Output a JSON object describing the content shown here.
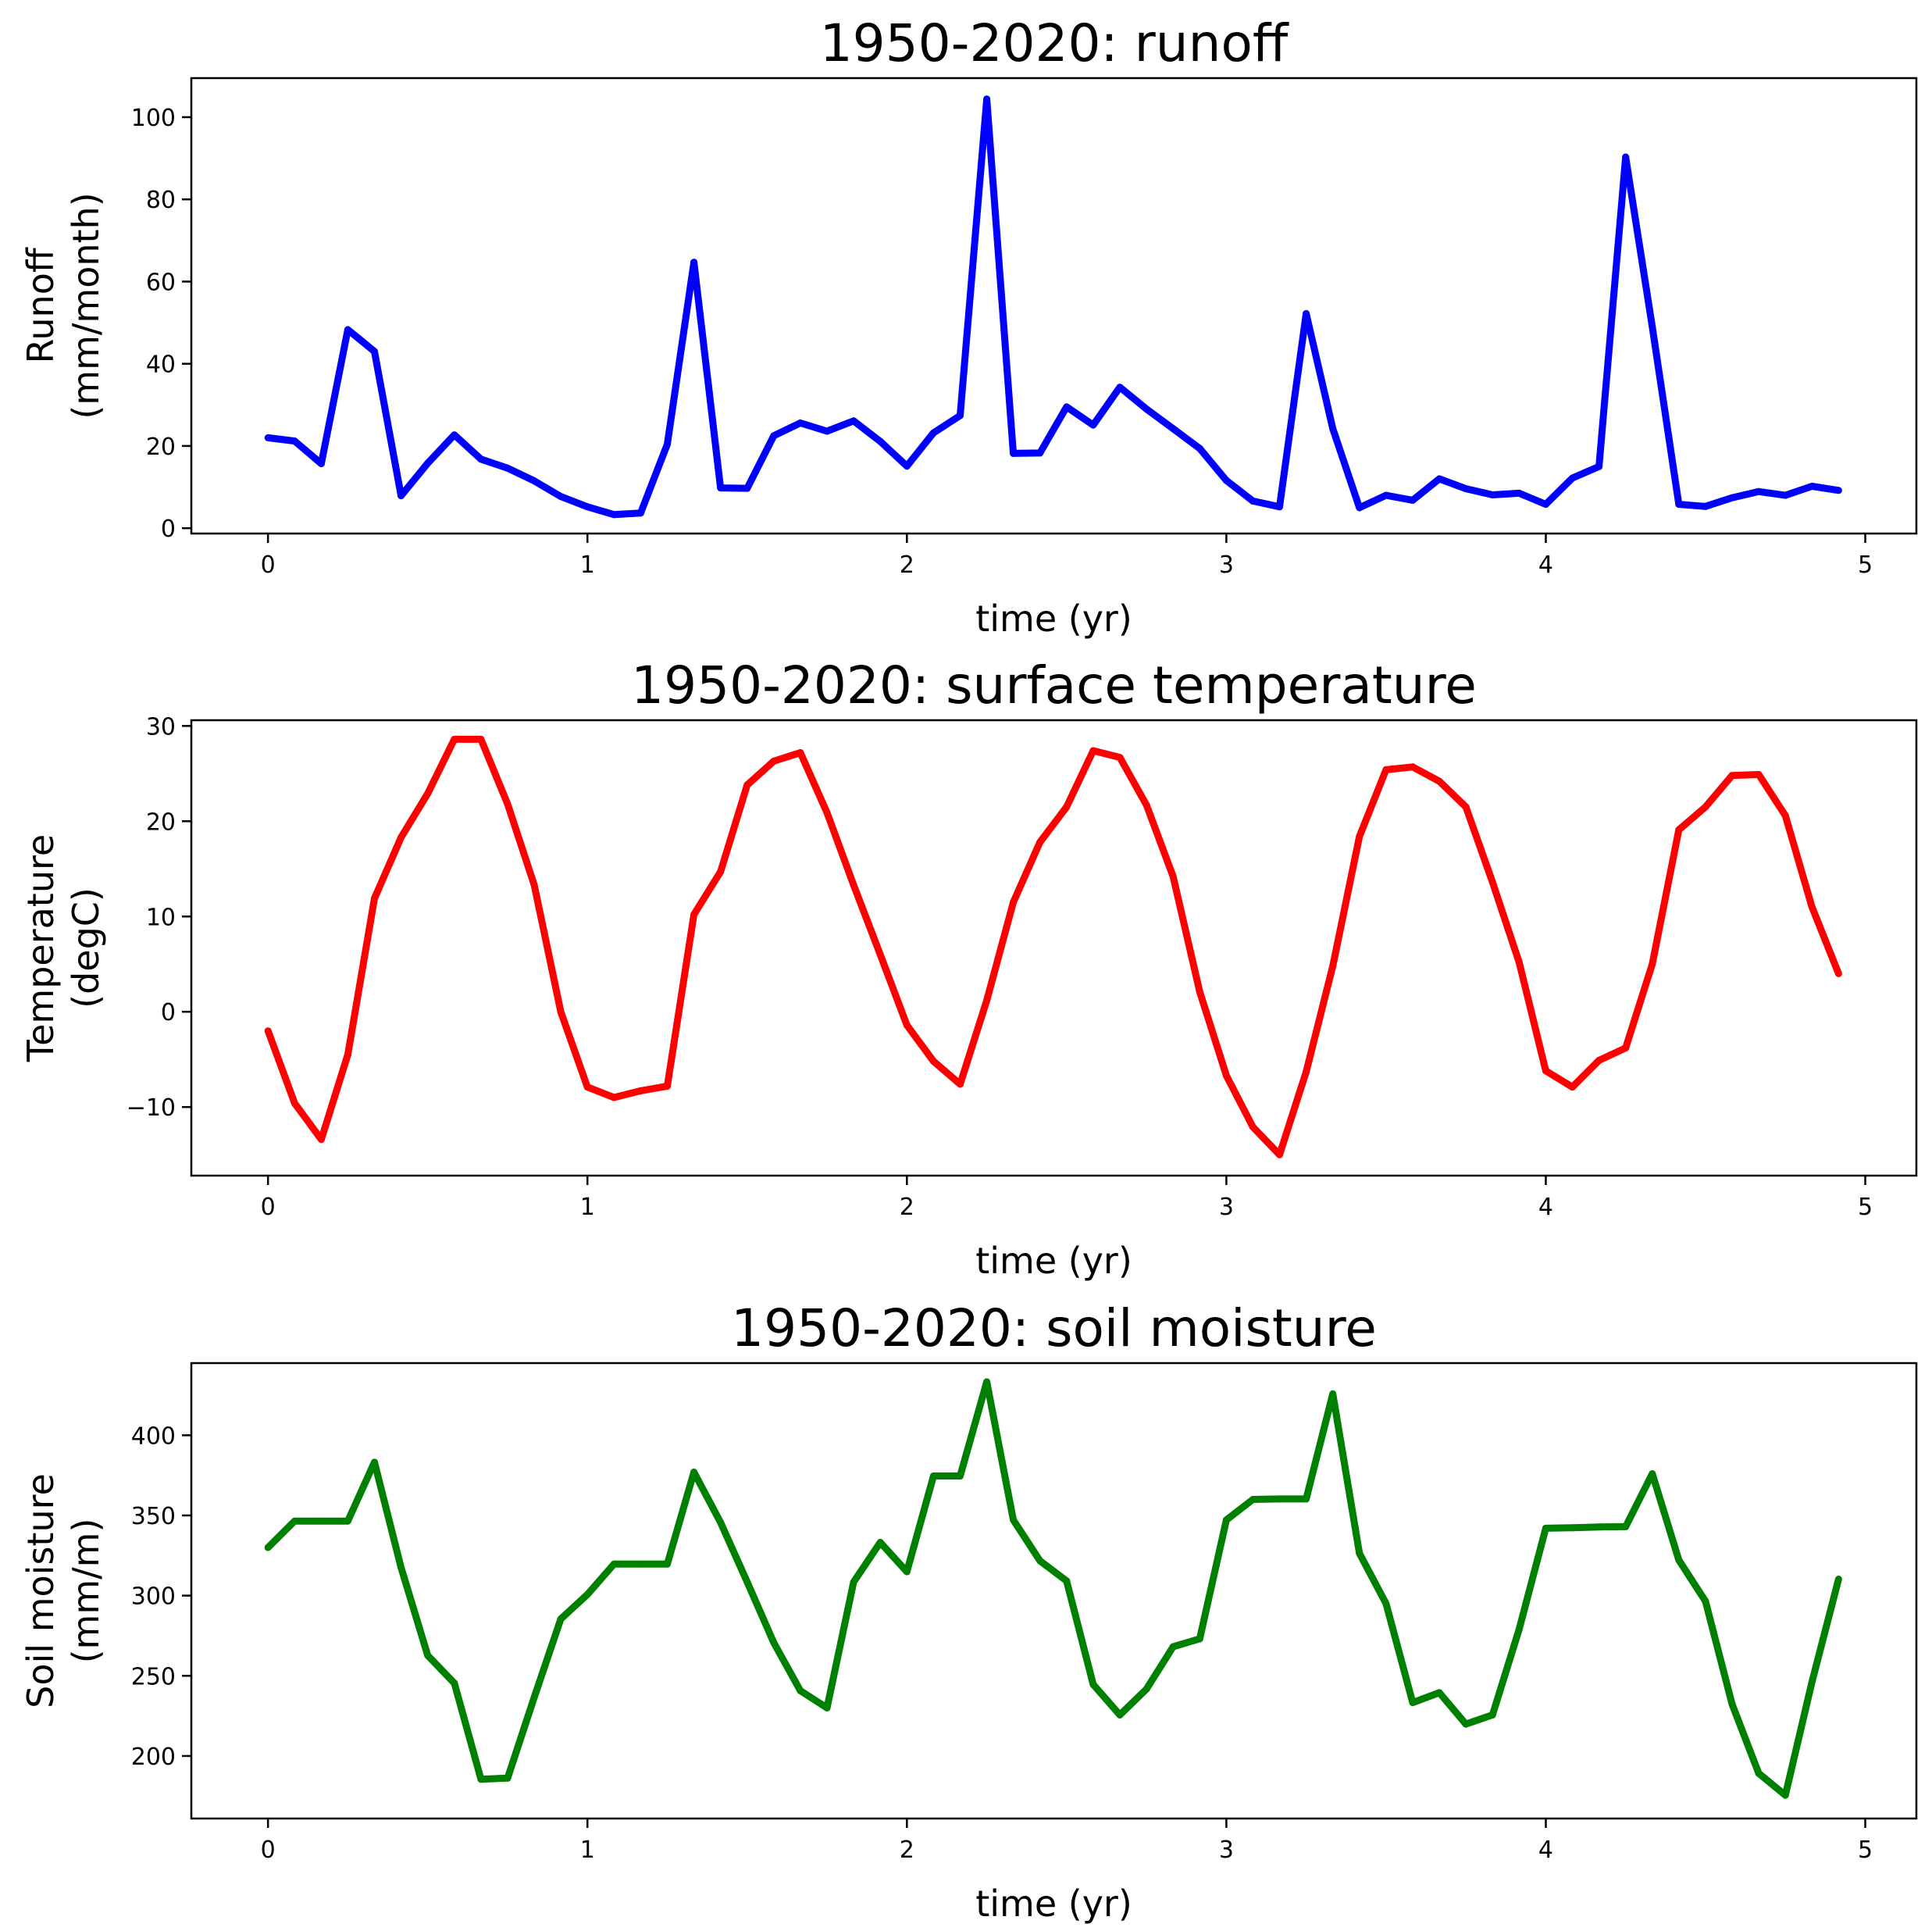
{
  "chart_data": [
    {
      "type": "line",
      "title": "1950-2020: runoff",
      "xlabel": "time (yr)",
      "ylabel": [
        "Runoff",
        "(mm/month)"
      ],
      "xlim": [
        -0.24,
        5.16
      ],
      "ylim": [
        -1.3,
        109.5
      ],
      "xticks": [
        0,
        1,
        2,
        3,
        4,
        5
      ],
      "xtick_labels": [
        "0",
        "1",
        "2",
        "3",
        "4",
        "5"
      ],
      "yticks": [
        0,
        20,
        40,
        60,
        80,
        100
      ],
      "ytick_labels": [
        "0",
        "20",
        "40",
        "60",
        "80",
        "100"
      ],
      "grid": false,
      "series": [
        {
          "color": "#0000ff",
          "x_step": 0.08333,
          "values": [
            22,
            21.2,
            15.7,
            48.3,
            43,
            7.9,
            15.8,
            22.7,
            16.8,
            14.6,
            11.5,
            7.7,
            5.2,
            3.3,
            3.7,
            20.4,
            64.7,
            9.8,
            9.7,
            22.5,
            25.6,
            23.6,
            26.1,
            21.1,
            15.1,
            23.2,
            27.4,
            104.4,
            18.2,
            18.3,
            29.5,
            25.1,
            34.3,
            29,
            24.2,
            19.4,
            11.6,
            6.6,
            5.2,
            52.2,
            24.2,
            5,
            8,
            6.8,
            12,
            9.6,
            8.1,
            8.5,
            5.8,
            12.2,
            15,
            90.3,
            49,
            5.8,
            5.3,
            7.4,
            8.9,
            8,
            10.2,
            9.2
          ]
        }
      ]
    },
    {
      "type": "line",
      "title": "1950-2020: surface temperature",
      "xlabel": "time (yr)",
      "ylabel": [
        "Temperature",
        "(degC)"
      ],
      "xlim": [
        -0.24,
        5.16
      ],
      "ylim": [
        -17.2,
        30.6
      ],
      "xticks": [
        0,
        1,
        2,
        3,
        4,
        5
      ],
      "xtick_labels": [
        "0",
        "1",
        "2",
        "3",
        "4",
        "5"
      ],
      "yticks": [
        -10,
        0,
        10,
        20,
        30
      ],
      "ytick_labels": [
        "−10",
        "0",
        "10",
        "20",
        "30"
      ],
      "grid": false,
      "series": [
        {
          "color": "#ff0000",
          "x_step": 0.08333,
          "values": [
            -2,
            -9.6,
            -13.4,
            -4.5,
            11.9,
            18.3,
            22.9,
            28.6,
            28.6,
            21.8,
            13.3,
            0,
            -7.9,
            -9,
            -8.3,
            -7.8,
            10.2,
            14.7,
            23.8,
            26.3,
            27.2,
            20.9,
            13.3,
            6,
            -1.4,
            -5.2,
            -7.6,
            1.2,
            11.5,
            17.8,
            21.5,
            27.4,
            26.7,
            21.7,
            14.2,
            2.1,
            -6.7,
            -12.1,
            -15,
            -6.3,
            4.8,
            18.4,
            25.4,
            25.7,
            24.2,
            21.5,
            13.6,
            5.2,
            -6.2,
            -7.9,
            -5.1,
            -3.8,
            5,
            19.1,
            21.5,
            24.8,
            24.9,
            20.6,
            11,
            4
          ]
        }
      ]
    },
    {
      "type": "line",
      "title": "1950-2020: soil moisture",
      "xlabel": "time (yr)",
      "ylabel": [
        "Soil moisture",
        "(mm/m)"
      ],
      "xlim": [
        -0.24,
        5.16
      ],
      "ylim": [
        161,
        445
      ],
      "xticks": [
        0,
        1,
        2,
        3,
        4,
        5
      ],
      "xtick_labels": [
        "0",
        "1",
        "2",
        "3",
        "4",
        "5"
      ],
      "yticks": [
        200,
        250,
        300,
        350,
        400
      ],
      "ytick_labels": [
        "200",
        "250",
        "300",
        "350",
        "400"
      ],
      "grid": false,
      "series": [
        {
          "color": "#008000",
          "x_step": 0.08333,
          "values": [
            330,
            346.5,
            346.5,
            346.5,
            383.2,
            317.5,
            262.7,
            245.4,
            185.5,
            186.2,
            236.6,
            285.4,
            300.7,
            319.7,
            319.7,
            319.7,
            377,
            345.6,
            308.5,
            270.6,
            240.7,
            230,
            308.5,
            333.2,
            314.9,
            374.6,
            374.6,
            433.3,
            347.2,
            321.7,
            309.2,
            244.6,
            225.6,
            241.7,
            268.1,
            273.1,
            347.2,
            360,
            360.3,
            360.3,
            425.8,
            326.4,
            295,
            233.3,
            239.5,
            219.9,
            225.6,
            279,
            342,
            342.3,
            342.8,
            343,
            376,
            322.2,
            296.5,
            232.3,
            189.2,
            175.5,
            246.2,
            310.3
          ]
        }
      ]
    }
  ]
}
